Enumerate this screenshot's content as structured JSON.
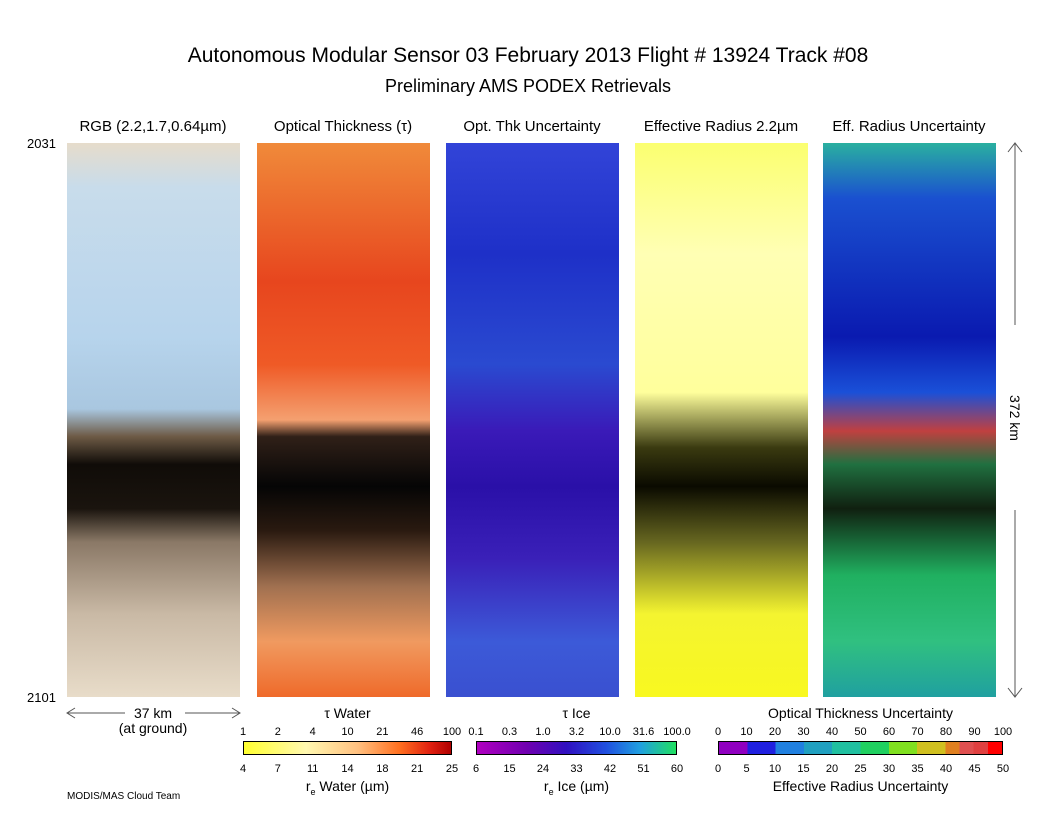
{
  "header": {
    "title": "Autonomous Modular Sensor  03 February 2013  Flight # 13924 Track #08",
    "subtitle": "Preliminary AMS PODEX Retrievals"
  },
  "panels": [
    {
      "title": "RGB (2.2,1.7,0.64µm)"
    },
    {
      "title": "Optical Thickness (τ)"
    },
    {
      "title": "Opt. Thk Uncertainty"
    },
    {
      "title": "Effective Radius 2.2µm"
    },
    {
      "title": "Eff. Radius Uncertainty"
    }
  ],
  "time_start": "2031",
  "time_end": "2101",
  "width_scale": {
    "label": "37 km",
    "note": "(at ground)"
  },
  "length_scale": {
    "label": "372 km"
  },
  "colorbars": [
    {
      "top_label": "τ Water",
      "top_ticks": [
        "1",
        "2",
        "4",
        "10",
        "21",
        "46",
        "100"
      ],
      "bottom_ticks": [
        "4",
        "7",
        "11",
        "14",
        "18",
        "21",
        "25"
      ],
      "bottom_label": {
        "symbol": "r",
        "subscript": "e",
        "text": " Water (µm)"
      }
    },
    {
      "top_label": "τ Ice",
      "top_ticks": [
        "0.1",
        "0.3",
        "1.0",
        "3.2",
        "10.0",
        "31.6",
        "100.0"
      ],
      "bottom_ticks": [
        "6",
        "15",
        "24",
        "33",
        "42",
        "51",
        "60"
      ],
      "bottom_label": {
        "symbol": "r",
        "subscript": "e",
        "text": " Ice (µm)"
      }
    },
    {
      "top_label": "Optical Thickness Uncertainty",
      "top_ticks": [
        "0",
        "10",
        "20",
        "30",
        "40",
        "50",
        "60",
        "70",
        "80",
        "90",
        "100"
      ],
      "bottom_ticks": [
        "0",
        "5",
        "10",
        "15",
        "20",
        "25",
        "30",
        "35",
        "40",
        "45",
        "50"
      ],
      "bottom_label": {
        "text": "Effective Radius Uncertainty"
      }
    }
  ],
  "credit": "MODIS/MAS Cloud Team"
}
